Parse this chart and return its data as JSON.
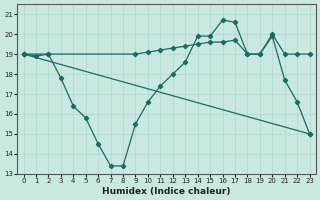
{
  "xlabel": "Humidex (Indice chaleur)",
  "xlim": [
    -0.5,
    23.5
  ],
  "ylim": [
    13,
    21.5
  ],
  "yticks": [
    13,
    14,
    15,
    16,
    17,
    18,
    19,
    20,
    21
  ],
  "xticks": [
    0,
    1,
    2,
    3,
    4,
    5,
    6,
    7,
    8,
    9,
    10,
    11,
    12,
    13,
    14,
    15,
    16,
    17,
    18,
    19,
    20,
    21,
    22,
    23
  ],
  "bg_color": "#c9e8e2",
  "line_color": "#1a6b60",
  "line1_x": [
    0,
    1,
    2,
    3,
    4,
    5,
    6,
    7,
    8,
    9,
    10,
    11,
    12,
    13,
    14,
    15,
    16,
    17,
    18,
    19,
    20,
    21,
    22,
    23
  ],
  "line1_y": [
    19.0,
    18.9,
    19.0,
    17.8,
    16.4,
    15.8,
    14.5,
    13.4,
    13.4,
    15.5,
    16.6,
    17.4,
    18.0,
    18.6,
    19.9,
    19.9,
    20.7,
    20.6,
    19.0,
    19.0,
    19.9,
    17.7,
    16.6,
    15.0
  ],
  "line2_x": [
    0,
    2,
    9,
    10,
    11,
    12,
    13,
    14,
    15,
    16,
    17,
    18,
    19,
    20,
    21,
    22,
    23
  ],
  "line2_y": [
    19.0,
    19.0,
    19.0,
    19.1,
    19.2,
    19.3,
    19.4,
    19.5,
    19.6,
    19.6,
    19.7,
    19.0,
    19.0,
    20.0,
    19.0,
    19.0,
    19.0
  ],
  "line3_x": [
    0,
    23
  ],
  "line3_y": [
    19.0,
    15.0
  ]
}
